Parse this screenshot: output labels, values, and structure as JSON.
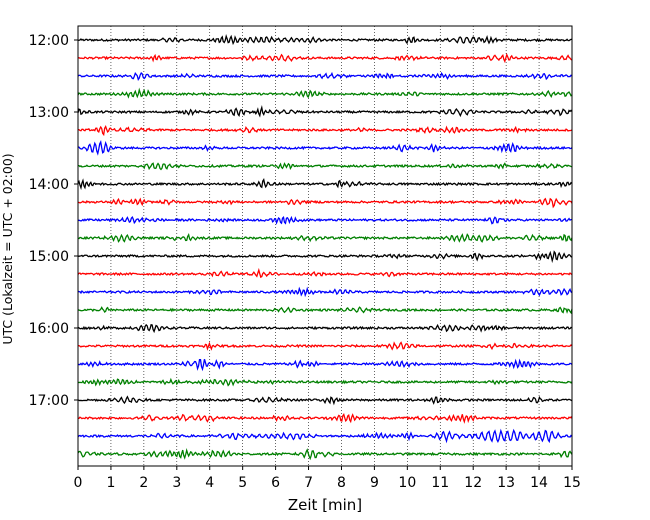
{
  "chart_data": {
    "type": "line",
    "title": "",
    "xlabel": "Zeit  [min]",
    "ylabel": "UTC (Lokalzeit = UTC + 02:00)",
    "xlim": [
      0,
      15
    ],
    "x_ticks": [
      "0",
      "1",
      "2",
      "3",
      "4",
      "5",
      "6",
      "7",
      "8",
      "9",
      "10",
      "11",
      "12",
      "13",
      "14",
      "15"
    ],
    "y_ticks": [
      "12:00",
      "13:00",
      "14:00",
      "15:00",
      "16:00",
      "17:00"
    ],
    "grid": "vertical dotted",
    "trace_interval_minutes": 15,
    "colors_cycle": [
      "#000000",
      "#ff0000",
      "#0000ff",
      "#008000"
    ],
    "series": [
      {
        "start": "12:00",
        "color": "#000000"
      },
      {
        "start": "12:15",
        "color": "#ff0000"
      },
      {
        "start": "12:30",
        "color": "#0000ff"
      },
      {
        "start": "12:45",
        "color": "#008000"
      },
      {
        "start": "13:00",
        "color": "#000000"
      },
      {
        "start": "13:15",
        "color": "#ff0000"
      },
      {
        "start": "13:30",
        "color": "#0000ff"
      },
      {
        "start": "13:45",
        "color": "#008000"
      },
      {
        "start": "14:00",
        "color": "#000000"
      },
      {
        "start": "14:15",
        "color": "#ff0000"
      },
      {
        "start": "14:30",
        "color": "#0000ff"
      },
      {
        "start": "14:45",
        "color": "#008000"
      },
      {
        "start": "15:00",
        "color": "#000000"
      },
      {
        "start": "15:15",
        "color": "#ff0000"
      },
      {
        "start": "15:30",
        "color": "#0000ff"
      },
      {
        "start": "15:45",
        "color": "#008000"
      },
      {
        "start": "16:00",
        "color": "#000000"
      },
      {
        "start": "16:15",
        "color": "#ff0000"
      },
      {
        "start": "16:30",
        "color": "#0000ff"
      },
      {
        "start": "16:45",
        "color": "#008000"
      },
      {
        "start": "17:00",
        "color": "#000000"
      },
      {
        "start": "17:15",
        "color": "#ff0000"
      },
      {
        "start": "17:30",
        "color": "#0000ff"
      },
      {
        "start": "17:45",
        "color": "#008000"
      }
    ]
  }
}
